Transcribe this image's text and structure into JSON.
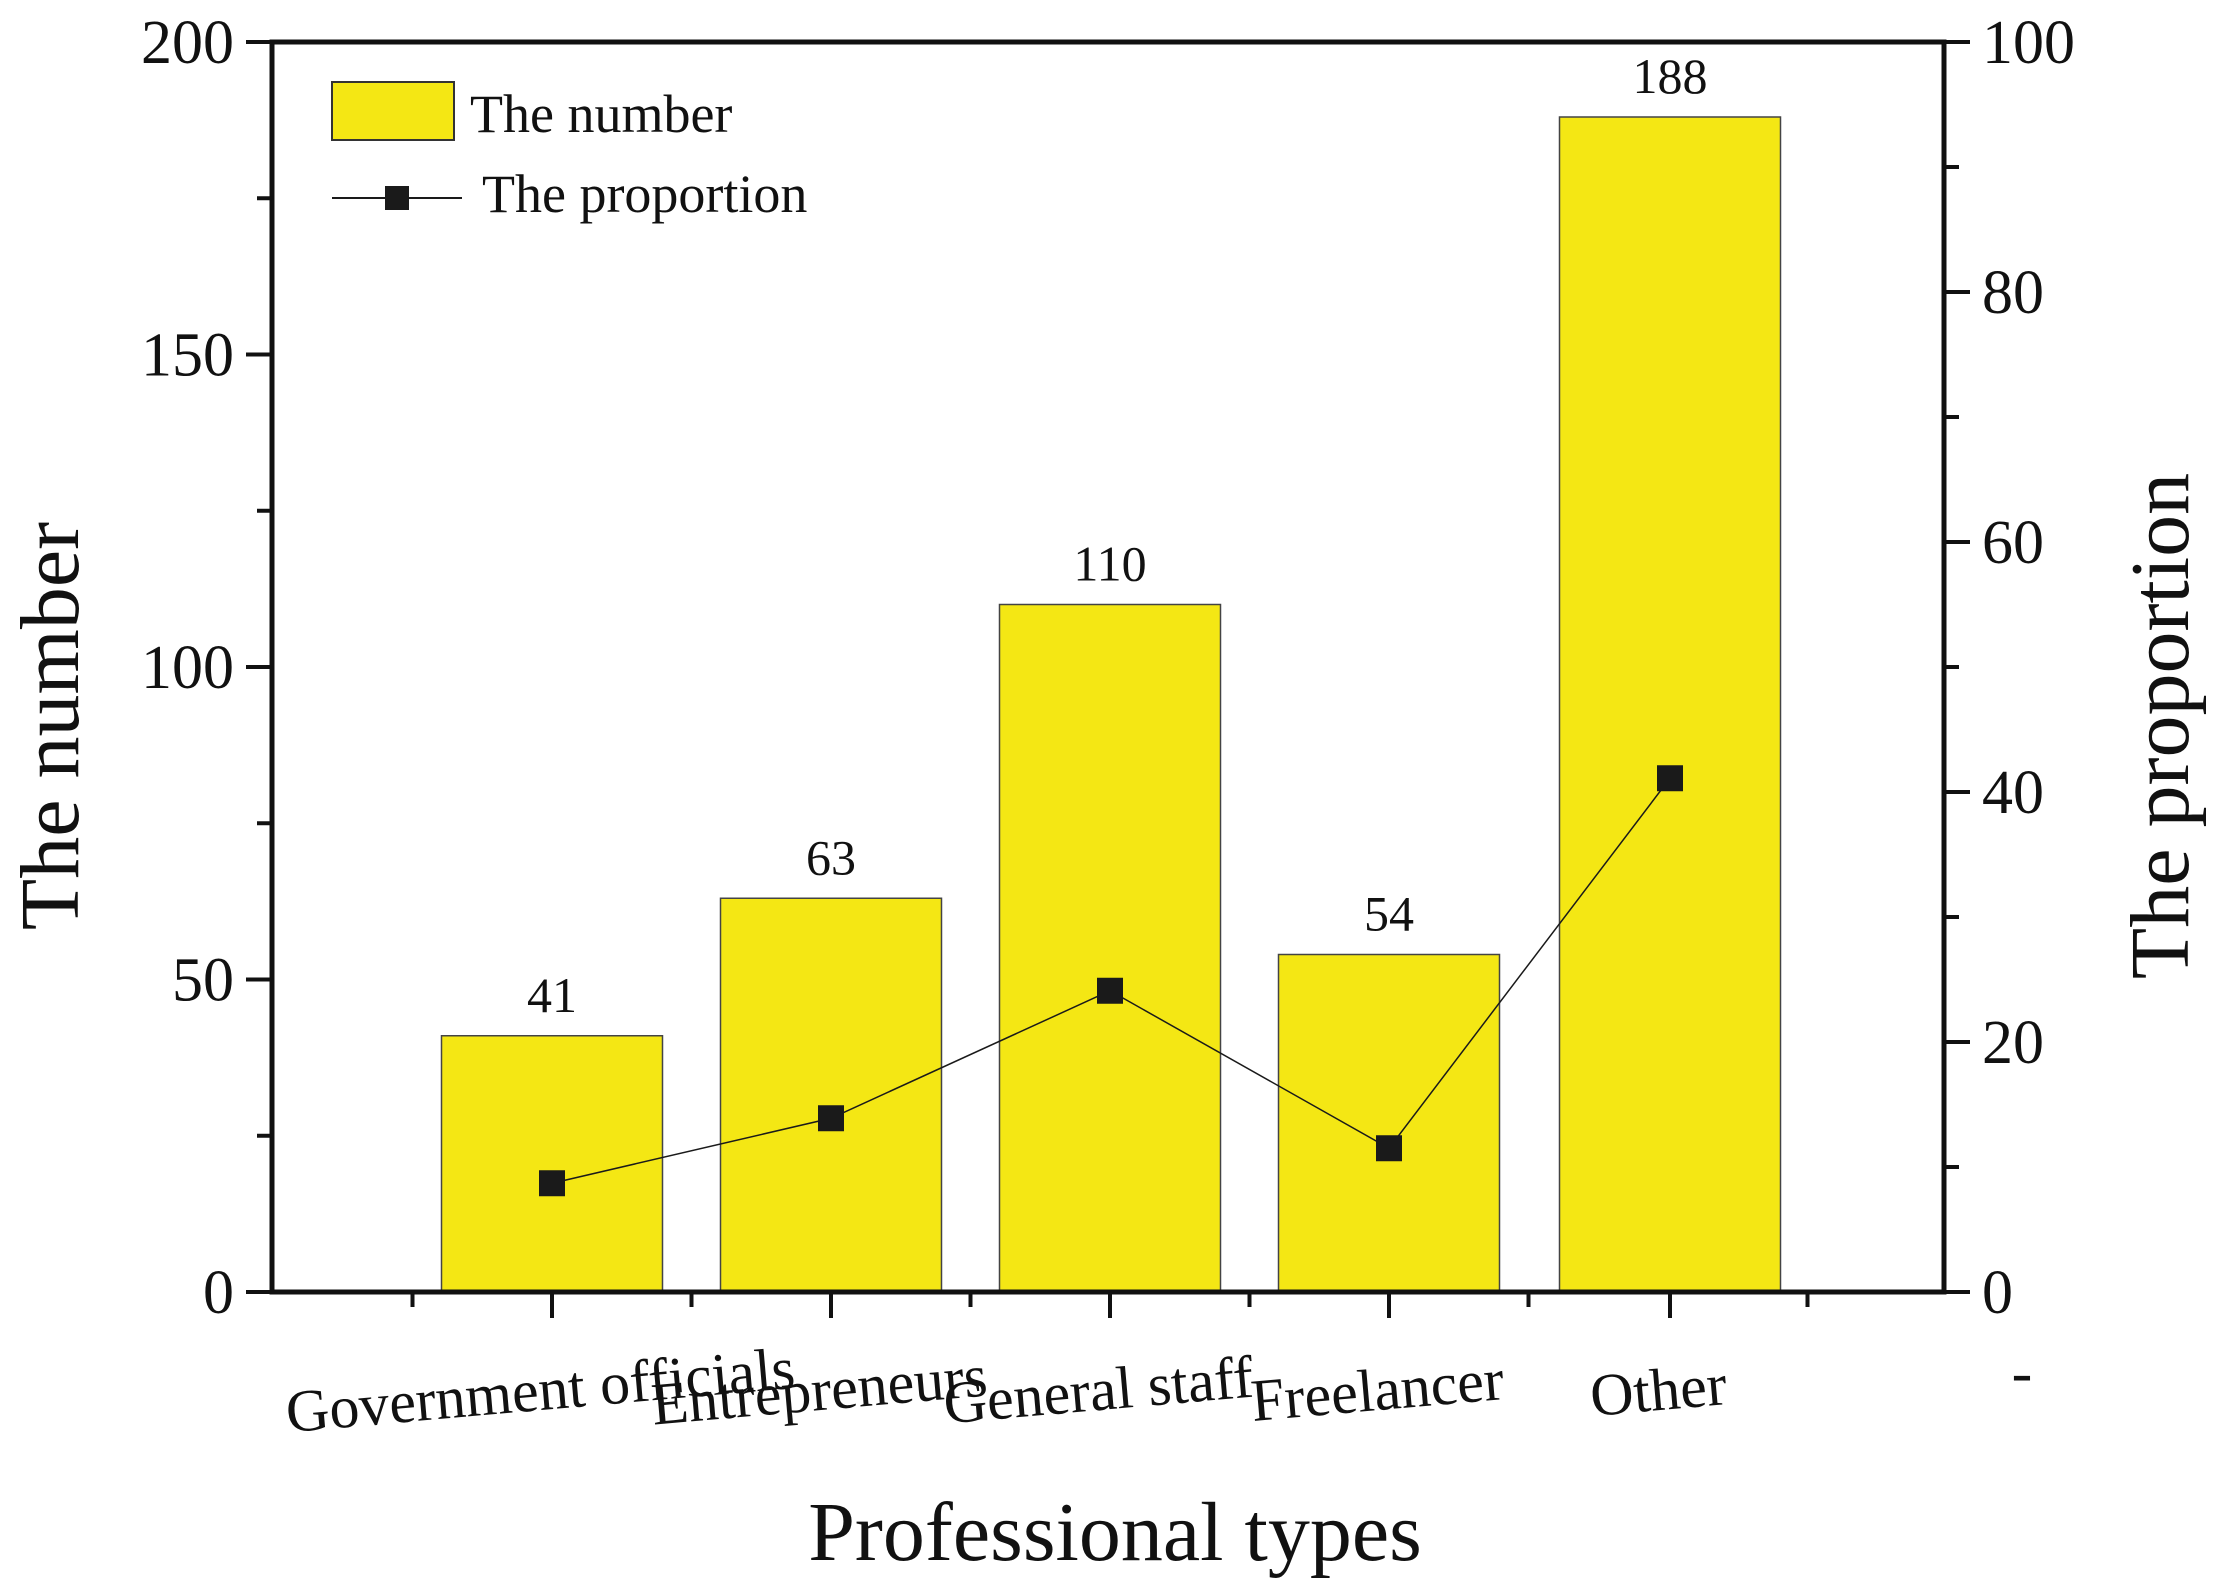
{
  "chart_data": {
    "type": "bar",
    "title": "",
    "xlabel": "Professional types",
    "ylabel": "The number",
    "ylabel_right": "The proportion",
    "categories": [
      "Government officials",
      "Entrepreneurs",
      "General staff",
      "Freelancer",
      "Other"
    ],
    "series": [
      {
        "name": "The number",
        "type": "bar",
        "axis": "left",
        "values": [
          41,
          63,
          110,
          54,
          188
        ],
        "color": "#f4e714"
      },
      {
        "name": "The proportion",
        "type": "line",
        "axis": "right",
        "marker": "square",
        "values": [
          8.7,
          13.9,
          24.1,
          11.5,
          41.1
        ],
        "color": "#1a1a1a"
      }
    ],
    "data_labels": [
      "41",
      "63",
      "110",
      "54",
      "188"
    ],
    "ylim": [
      0,
      200
    ],
    "ylim_right": [
      0,
      100
    ],
    "yticks": [
      "0",
      "50",
      "100",
      "150",
      "200"
    ],
    "yticks_right": [
      "0",
      "20",
      "40",
      "60",
      "80",
      "100"
    ],
    "extra_tick_label": "-",
    "legend": {
      "placement": "top-left",
      "entries": [
        "The number",
        "The proportion"
      ]
    },
    "grid": false
  }
}
